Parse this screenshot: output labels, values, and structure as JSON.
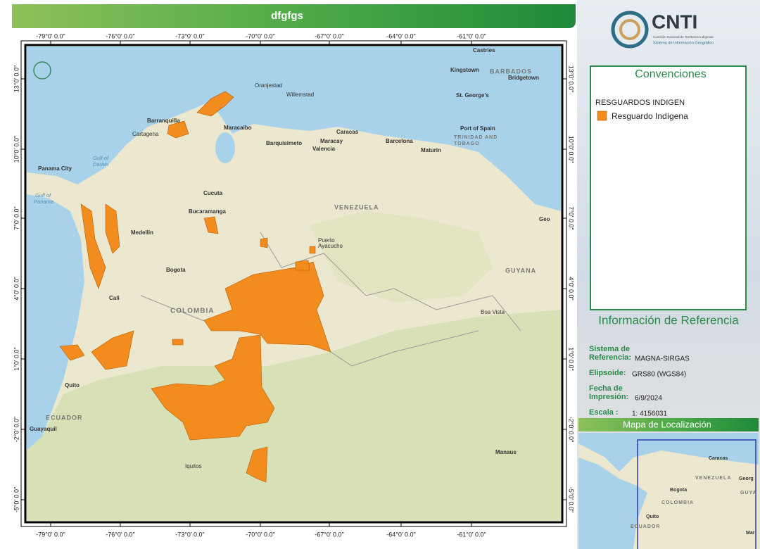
{
  "title": "dfgfgs",
  "map": {
    "lon_ticks": [
      "-79°0' 0.0\"",
      "-76°0' 0.0\"",
      "-73°0' 0.0\"",
      "-70°0' 0.0\"",
      "-67°0' 0.0\"",
      "-64°0' 0.0\"",
      "-61°0' 0.0\""
    ],
    "lat_ticks": [
      "13°0' 0.0\"",
      "10°0' 0.0\"",
      "7°0' 0.0\"",
      "4°0' 0.0\"",
      "1°0' 0.0\"",
      "-2°0' 0.0\"",
      "-5°0' 0.0\""
    ],
    "places": [
      "Castries",
      "Kingstown",
      "BARBADOS",
      "Bridgetown",
      "St. George's",
      "Port of Spain",
      "TRINIDAD AND",
      "TOBAGO",
      "Oranjestad",
      "Willemstad",
      "Barranquilla",
      "Maracaibo",
      "Cartagena",
      "Caracas",
      "Barquisimeto",
      "Maracay",
      "Valencia",
      "Barcelona",
      "Maturin",
      "Gulf of",
      "Darien",
      "Panama City",
      "Gulf of",
      "Panama",
      "Cucuta",
      "Bucaramanga",
      "VENEZUELA",
      "Medellin",
      "Puerto",
      "Ayacucho",
      "Geo",
      "GUYANA",
      "Bogota",
      "Cali",
      "COLOMBIA",
      "Boa Vista",
      "Quito",
      "ECUADOR",
      "Guayaquil",
      "Manaus",
      "Iquitos"
    ]
  },
  "logo": {
    "name": "CNTI",
    "line1": "Comisión Nacional de Territorios Indígenas",
    "line2": "Sistema de Información Geográfico"
  },
  "legend": {
    "title": "Convenciones",
    "layer": "RESGUARDOS INDIGEN",
    "item": "Resguardo Indígena"
  },
  "reference": {
    "title": "Información de Referencia",
    "rows": [
      {
        "label": [
          "Sistema de",
          "Referencia:"
        ],
        "value": "MAGNA-SIRGAS"
      },
      {
        "label": [
          "Elipsoide:"
        ],
        "value": "GRS80 (WGS84)"
      },
      {
        "label": [
          "Fecha de",
          "Impresión:"
        ],
        "value": "6/9/2024"
      },
      {
        "label": [
          "Escala :"
        ],
        "value": "1: 4156031"
      }
    ]
  },
  "locator": {
    "title": "Mapa de Localización",
    "places": [
      "Caracas",
      "VENEZUELA",
      "Bogota",
      "COLOMBIA",
      "Quito",
      "ECUADOR",
      "Georg",
      "GUYA",
      "Mar"
    ]
  }
}
